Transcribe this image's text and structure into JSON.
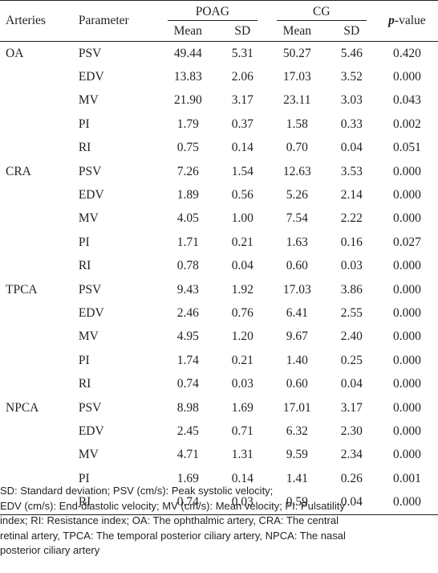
{
  "table": {
    "headers": {
      "arteries": "Arteries",
      "parameter": "Parameter",
      "group1": "POAG",
      "group2": "CG",
      "pvalue_italic": "p",
      "pvalue_rest": "-value",
      "mean": "Mean",
      "sd": "SD"
    },
    "groups": [
      {
        "artery": "OA",
        "rows": [
          {
            "param": "PSV",
            "m1": "49.44",
            "s1": "5.31",
            "m2": "50.27",
            "s2": "5.46",
            "p": "0.420"
          },
          {
            "param": "EDV",
            "m1": "13.83",
            "s1": "2.06",
            "m2": "17.03",
            "s2": "3.52",
            "p": "0.000"
          },
          {
            "param": "MV",
            "m1": "21.90",
            "s1": "3.17",
            "m2": "23.11",
            "s2": "3.03",
            "p": "0.043"
          },
          {
            "param": "PI",
            "m1": "1.79",
            "s1": "0.37",
            "m2": "1.58",
            "s2": "0.33",
            "p": "0.002"
          },
          {
            "param": "RI",
            "m1": "0.75",
            "s1": "0.14",
            "m2": "0.70",
            "s2": "0.04",
            "p": "0.051"
          }
        ]
      },
      {
        "artery": "CRA",
        "rows": [
          {
            "param": "PSV",
            "m1": "7.26",
            "s1": "1.54",
            "m2": "12.63",
            "s2": "3.53",
            "p": "0.000"
          },
          {
            "param": "EDV",
            "m1": "1.89",
            "s1": "0.56",
            "m2": "5.26",
            "s2": "2.14",
            "p": "0.000"
          },
          {
            "param": "MV",
            "m1": "4.05",
            "s1": "1.00",
            "m2": "7.54",
            "s2": "2.22",
            "p": "0.000"
          },
          {
            "param": "PI",
            "m1": "1.71",
            "s1": "0.21",
            "m2": "1.63",
            "s2": "0.16",
            "p": "0.027"
          },
          {
            "param": "RI",
            "m1": "0.78",
            "s1": "0.04",
            "m2": "0.60",
            "s2": "0.03",
            "p": "0.000"
          }
        ]
      },
      {
        "artery": "TPCA",
        "rows": [
          {
            "param": "PSV",
            "m1": "9.43",
            "s1": "1.92",
            "m2": "17.03",
            "s2": "3.86",
            "p": "0.000"
          },
          {
            "param": "EDV",
            "m1": "2.46",
            "s1": "0.76",
            "m2": "6.41",
            "s2": "2.55",
            "p": "0.000"
          },
          {
            "param": "MV",
            "m1": "4.95",
            "s1": "1.20",
            "m2": "9.67",
            "s2": "2.40",
            "p": "0.000"
          },
          {
            "param": "PI",
            "m1": "1.74",
            "s1": "0.21",
            "m2": "1.40",
            "s2": "0.25",
            "p": "0.000"
          },
          {
            "param": "RI",
            "m1": "0.74",
            "s1": "0.03",
            "m2": "0.60",
            "s2": "0.04",
            "p": "0.000"
          }
        ]
      },
      {
        "artery": "NPCA",
        "rows": [
          {
            "param": "PSV",
            "m1": "8.98",
            "s1": "1.69",
            "m2": "17.01",
            "s2": "3.17",
            "p": "0.000"
          },
          {
            "param": "EDV",
            "m1": "2.45",
            "s1": "0.71",
            "m2": "6.32",
            "s2": "2.30",
            "p": "0.000"
          },
          {
            "param": "MV",
            "m1": "4.71",
            "s1": "1.31",
            "m2": "9.59",
            "s2": "2.34",
            "p": "0.000"
          },
          {
            "param": "PI",
            "m1": "1.69",
            "s1": "0.14",
            "m2": "1.41",
            "s2": "0.26",
            "p": "0.001"
          },
          {
            "param": "RI",
            "m1": "0.74",
            "s1": "0.03",
            "m2": "0.59",
            "s2": "0.04",
            "p": "0.000"
          }
        ]
      }
    ]
  },
  "footnote": {
    "line1": "SD: Standard deviation; PSV (cm/s): Peak systolic velocity;",
    "line2": "EDV (cm/s): End-diastolic velocity; MV (cm/s): Mean velocity; PI: Pulsatility",
    "line3": "index; RI: Resistance index; OA: The ophthalmic artery, CRA: The central",
    "line4": "retinal artery, TPCA: The temporal posterior ciliary artery, NPCA: The nasal",
    "line5": "posterior ciliary artery"
  }
}
